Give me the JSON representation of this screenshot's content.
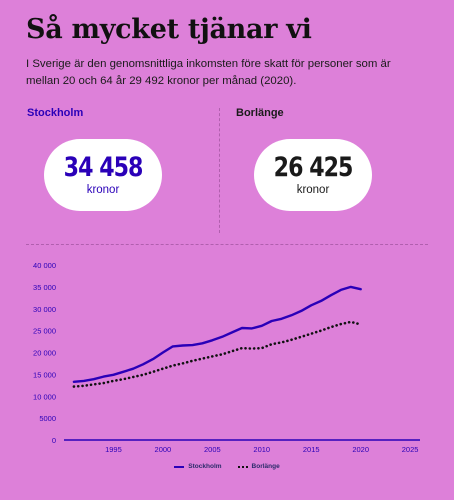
{
  "header": {
    "title": "Så mycket tjänar vi",
    "subtitle": "I Sverige är den genomsnittliga inkomsten före skatt för personer som är mellan 20 och 64 år 29 492 kronor per månad (2020)."
  },
  "cards": [
    {
      "city": "Stockholm",
      "value": "34 458",
      "unit": "kronor",
      "color": "#2a00b8"
    },
    {
      "city": "Borlänge",
      "value": "26 425",
      "unit": "kronor",
      "color": "#1a1a1a"
    }
  ],
  "colors": {
    "background": "#dd80d9",
    "stockholm": "#2a00b8",
    "borlange": "#111111"
  },
  "chart_data": {
    "type": "line",
    "x": [
      1991,
      1992,
      1993,
      1994,
      1995,
      1996,
      1997,
      1998,
      1999,
      2000,
      2001,
      2002,
      2003,
      2004,
      2005,
      2006,
      2007,
      2008,
      2009,
      2010,
      2011,
      2012,
      2013,
      2014,
      2015,
      2016,
      2017,
      2018,
      2019,
      2020
    ],
    "series": [
      {
        "name": "Stockholm",
        "style": "solid",
        "values": [
          13300,
          13500,
          13900,
          14500,
          14900,
          15600,
          16300,
          17300,
          18500,
          20000,
          21400,
          21600,
          21700,
          22100,
          22800,
          23600,
          24600,
          25600,
          25500,
          26100,
          27200,
          27700,
          28500,
          29500,
          30800,
          31800,
          33100,
          34300,
          35000,
          34458
        ]
      },
      {
        "name": "Borlänge",
        "style": "dotted",
        "values": [
          12200,
          12400,
          12700,
          13000,
          13500,
          13900,
          14400,
          14900,
          15600,
          16300,
          17000,
          17500,
          18100,
          18600,
          19100,
          19600,
          20300,
          21000,
          20900,
          21000,
          21900,
          22300,
          22900,
          23600,
          24300,
          25000,
          25800,
          26500,
          27000,
          26425
        ]
      }
    ],
    "ylim": [
      0,
      40000
    ],
    "yticks": [
      0,
      5000,
      10000,
      15000,
      20000,
      25000,
      30000,
      35000,
      40000
    ],
    "ytick_labels": [
      "0",
      "5000 ",
      "10 000",
      "15 000",
      "20 000",
      "25 000",
      "30 000",
      "35 000",
      "40 000"
    ],
    "xlim": [
      1990,
      2026
    ],
    "xticks": [
      1995,
      2000,
      2005,
      2010,
      2015,
      2020,
      2025
    ],
    "grid": false,
    "legend": "bottom-center"
  }
}
